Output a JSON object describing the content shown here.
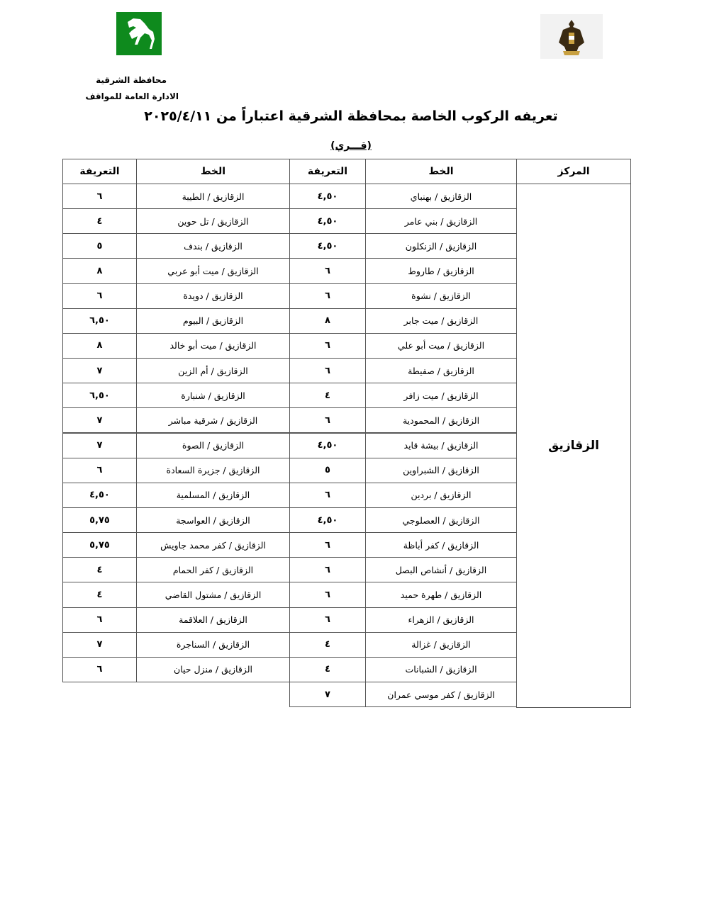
{
  "header": {
    "governorate": "محافظة الشرقية",
    "department": "الادارة العامة للمواقف",
    "title": "تعريفه الركوب الخاصة بمحافظة الشرقية اعتباراً من ٢٠٢٥/٤/١١",
    "subtitle": "(قـــري)",
    "logos": {
      "left": "sharqia-horse-logo",
      "right": "egypt-eagle-emblem"
    },
    "logo_green": "#0e8a1d"
  },
  "table": {
    "columns": {
      "center": "المركز",
      "line": "الخط",
      "fare": "التعريفة"
    },
    "center_name": "الزقازيق",
    "right_rows": [
      {
        "line": "الزقازيق / بهنباي",
        "fare": "٤,٥٠"
      },
      {
        "line": "الزقازيق / بني عامر",
        "fare": "٤,٥٠"
      },
      {
        "line": "الزقازيق / الزنكلون",
        "fare": "٤,٥٠"
      },
      {
        "line": "الزقازيق / طاروط",
        "fare": "٦"
      },
      {
        "line": "الزقازيق / نشوة",
        "fare": "٦"
      },
      {
        "line": "الزقازيق / ميت جابر",
        "fare": "٨"
      },
      {
        "line": "الزقازيق / ميت أبو علي",
        "fare": "٦"
      },
      {
        "line": "الزقازيق / صفيطة",
        "fare": "٦"
      },
      {
        "line": "الزقازيق / ميت زافر",
        "fare": "٤"
      },
      {
        "line": "الزقازيق / المحمودية",
        "fare": "٦"
      },
      {
        "line": "الزقازيق / بيشة قايد",
        "fare": "٤,٥٠"
      },
      {
        "line": "الزقازيق / الشبراوين",
        "fare": "٥"
      },
      {
        "line": "الزقازيق / بردين",
        "fare": "٦"
      },
      {
        "line": "الزقازيق / العصلوجي",
        "fare": "٤,٥٠"
      },
      {
        "line": "الزقازيق / كفر أباظة",
        "fare": "٦"
      },
      {
        "line": "الزقازيق / أنشاص البصل",
        "fare": "٦"
      },
      {
        "line": "الزقازيق / طهرة حميد",
        "fare": "٦"
      },
      {
        "line": "الزقازيق / الزهراء",
        "fare": "٦"
      },
      {
        "line": "الزقازيق / غزالة",
        "fare": "٤"
      },
      {
        "line": "الزقازيق / الشبانات",
        "fare": "٤"
      },
      {
        "line": "الزقازيق / كفر موسي عمران",
        "fare": "٧"
      }
    ],
    "left_rows": [
      {
        "line": "الزقازيق / الطيبة",
        "fare": "٦"
      },
      {
        "line": "الزقازيق / تل حوين",
        "fare": "٤"
      },
      {
        "line": "الزقازيق / بندف",
        "fare": "٥"
      },
      {
        "line": "الزقازيق / ميت أبو عربي",
        "fare": "٨"
      },
      {
        "line": "الزقازيق / دويدة",
        "fare": "٦"
      },
      {
        "line": "الزقازيق / البيوم",
        "fare": "٦,٥٠"
      },
      {
        "line": "الزقازيق / ميت أبو خالد",
        "fare": "٨"
      },
      {
        "line": "الزقازيق / أم الزين",
        "fare": "٧"
      },
      {
        "line": "الزقازيق / شنبارة",
        "fare": "٦,٥٠"
      },
      {
        "line": "الزقازيق / شرقية مباشر",
        "fare": "٧"
      },
      {
        "line": "الزقازيق / الصوة",
        "fare": "٧"
      },
      {
        "line": "الزقازيق / جزيرة السعادة",
        "fare": "٦"
      },
      {
        "line": "الزقازيق / المسلمية",
        "fare": "٤,٥٠"
      },
      {
        "line": "الزقازيق / العواسجة",
        "fare": "٥,٧٥"
      },
      {
        "line": "الزقازيق / كفر محمد جاويش",
        "fare": "٥,٧٥"
      },
      {
        "line": "الزقازيق / كفر الحمام",
        "fare": "٤"
      },
      {
        "line": "الزقازيق / مشتول القاضي",
        "fare": "٤"
      },
      {
        "line": "الزقازيق / العلاقمة",
        "fare": "٦"
      },
      {
        "line": "الزقازيق / السناجرة",
        "fare": "٧"
      },
      {
        "line": "الزقازيق / منزل حيان",
        "fare": "٦"
      }
    ]
  }
}
